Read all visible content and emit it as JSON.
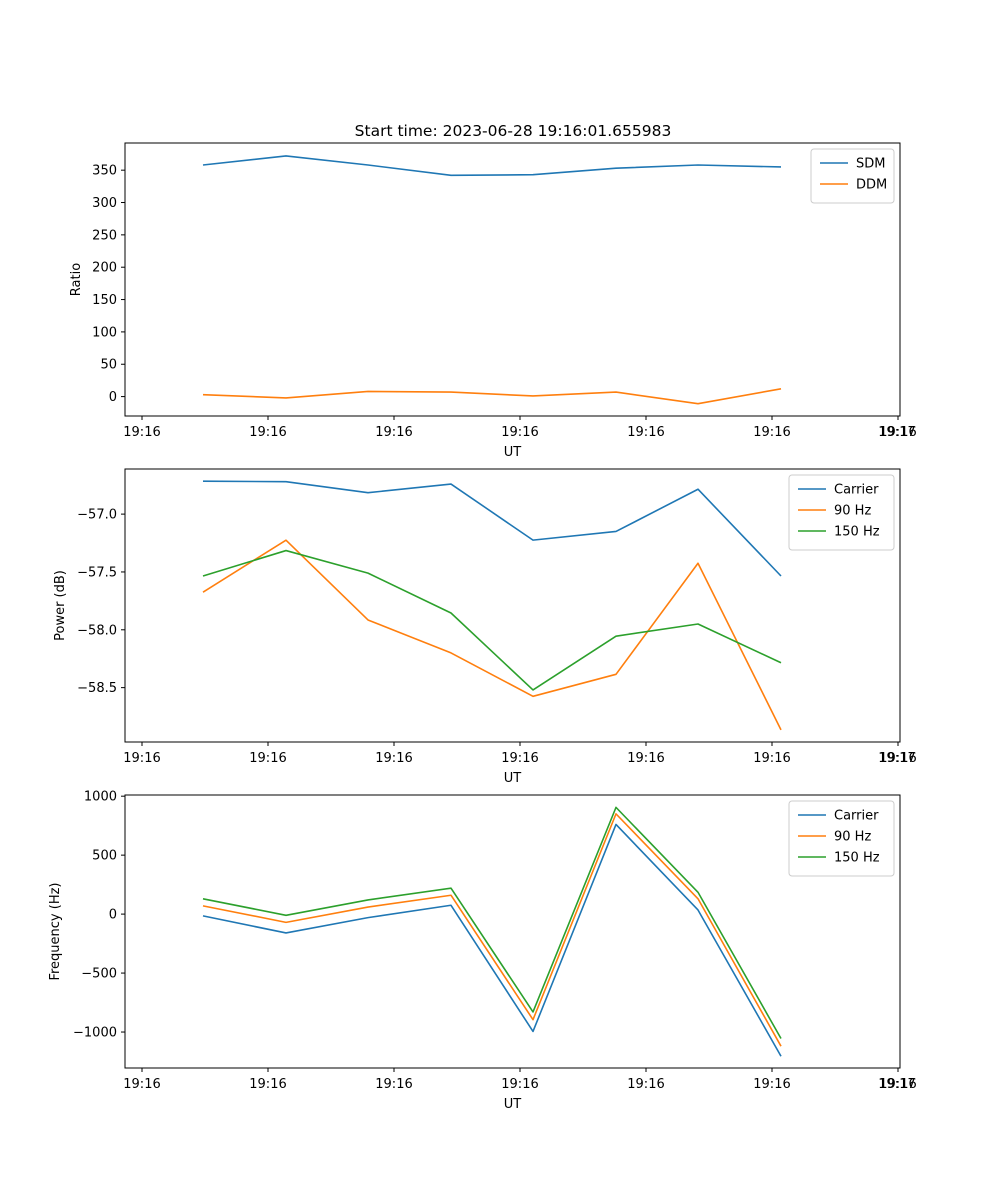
{
  "figure": {
    "title": "Start time: 2023-06-28 19:16:01.655983"
  },
  "colors": {
    "blue": "#1f77b4",
    "orange": "#ff7f0e",
    "green": "#2ca02c"
  },
  "chart_data": [
    {
      "type": "line",
      "title": "Start time: 2023-06-28 19:16:01.655983",
      "xlabel": "UT",
      "ylabel": "Ratio",
      "xtick_labels": [
        "19:16",
        "19:16",
        "19:16",
        "19:16",
        "19:16",
        "19:16",
        "19:16",
        "19:17"
      ],
      "ytick_values": [
        0,
        50,
        100,
        150,
        200,
        250,
        300,
        350
      ],
      "ytick_labels": [
        "0",
        "50",
        "100",
        "150",
        "200",
        "250",
        "300",
        "350"
      ],
      "ylim": [
        -30,
        392
      ],
      "x_samples": [
        1,
        2,
        3,
        4,
        5,
        6,
        7,
        8
      ],
      "legend_position": "top-right",
      "grid": false,
      "series": [
        {
          "name": "SDM",
          "color": "#1f77b4",
          "values": [
            358,
            372,
            358,
            342,
            343,
            353,
            358,
            355
          ]
        },
        {
          "name": "DDM",
          "color": "#ff7f0e",
          "values": [
            3,
            -2,
            8,
            7,
            1,
            7,
            -11,
            12
          ]
        }
      ]
    },
    {
      "type": "line",
      "title": "",
      "xlabel": "UT",
      "ylabel": "Power (dB)",
      "xtick_labels": [
        "19:16",
        "19:16",
        "19:16",
        "19:16",
        "19:16",
        "19:16",
        "19:16",
        "19:17"
      ],
      "ytick_values": [
        -57.0,
        -57.5,
        -58.0,
        -58.5
      ],
      "ytick_labels": [
        "−57.0",
        "−57.5",
        "−58.0",
        "−58.5"
      ],
      "ylim": [
        -58.97,
        -56.61
      ],
      "x_samples": [
        1,
        2,
        3,
        4,
        5,
        6,
        7,
        8
      ],
      "legend_position": "top-right",
      "grid": false,
      "series": [
        {
          "name": "Carrier",
          "color": "#1f77b4",
          "values": [
            -56.715,
            -56.72,
            -56.815,
            -56.74,
            -57.225,
            -57.15,
            -56.785,
            -57.535
          ]
        },
        {
          "name": "90 Hz",
          "color": "#ff7f0e",
          "values": [
            -57.675,
            -57.225,
            -57.915,
            -58.2,
            -58.575,
            -58.385,
            -57.425,
            -58.865
          ]
        },
        {
          "name": "150 Hz",
          "color": "#2ca02c",
          "values": [
            -57.535,
            -57.315,
            -57.51,
            -57.855,
            -58.52,
            -58.055,
            -57.95,
            -58.285
          ]
        }
      ]
    },
    {
      "type": "line",
      "title": "",
      "xlabel": "UT",
      "ylabel": "Frequency (Hz)",
      "xtick_labels": [
        "19:16",
        "19:16",
        "19:16",
        "19:16",
        "19:16",
        "19:16",
        "19:16",
        "19:17"
      ],
      "ytick_values": [
        1000,
        500,
        0,
        -500,
        -1000
      ],
      "ytick_labels": [
        "1000",
        "500",
        "0",
        "−500",
        "−1000"
      ],
      "ylim": [
        -1305,
        1010
      ],
      "x_samples": [
        1,
        2,
        3,
        4,
        5,
        6,
        7,
        8
      ],
      "legend_position": "top-right",
      "grid": false,
      "series": [
        {
          "name": "Carrier",
          "color": "#1f77b4",
          "values": [
            -15,
            -160,
            -30,
            75,
            -995,
            760,
            35,
            -1205
          ]
        },
        {
          "name": "90 Hz",
          "color": "#ff7f0e",
          "values": [
            70,
            -70,
            60,
            160,
            -895,
            850,
            130,
            -1120
          ]
        },
        {
          "name": "150 Hz",
          "color": "#2ca02c",
          "values": [
            130,
            -10,
            120,
            220,
            -830,
            905,
            185,
            -1055
          ]
        }
      ]
    }
  ]
}
